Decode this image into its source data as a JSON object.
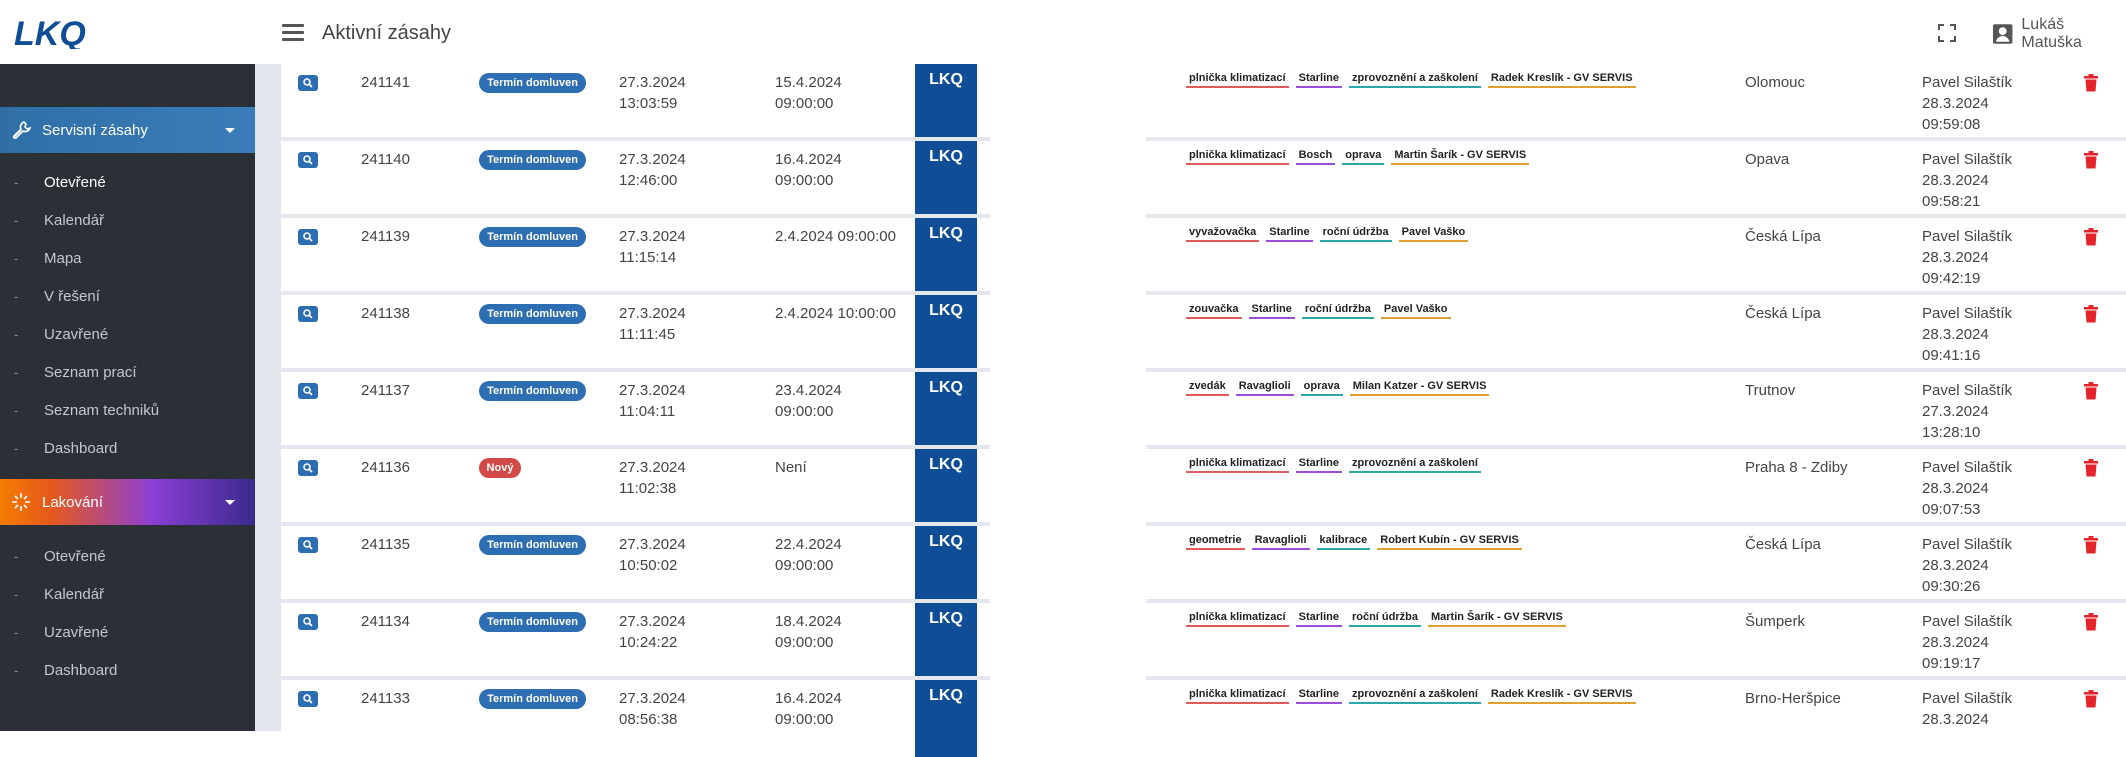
{
  "header": {
    "logo_text": "LKQ",
    "page_title": "Aktivní zásahy",
    "user_name": "Lukáš Matuška"
  },
  "sidebar": {
    "section1": {
      "label": "Servisní zásahy",
      "items": [
        "Otevřené",
        "Kalendář",
        "Mapa",
        "V řešení",
        "Uzavřené",
        "Seznam prací",
        "Seznam techniků",
        "Dashboard"
      ]
    },
    "section2": {
      "label": "Lakování",
      "items": [
        "Otevřené",
        "Kalendář",
        "Uzavřené",
        "Dashboard"
      ]
    }
  },
  "colors": {
    "accent_blue": "#2d6db1",
    "lkq_blue": "#0f4e96",
    "badge_red": "#d24a45",
    "delete_red": "#e3242b"
  },
  "rows": [
    {
      "id": "241141",
      "status": "Termín domluven",
      "status_color": "blue",
      "created_date": "27.3.2024",
      "created_time": "13:03:59",
      "term_date": "15.4.2024",
      "term_time": "09:00:00",
      "brand": "LKQ",
      "tags": [
        {
          "t": "plnička klimatizací",
          "c": "#e05a5a"
        },
        {
          "t": "Starline",
          "c": "#9b4fd6"
        },
        {
          "t": "zprovoznění a zaškolení",
          "c": "#2aa8a8"
        },
        {
          "t": "Radek Kreslík - GV SERVIS",
          "c": "#e0a030"
        }
      ],
      "city": "Olomouc",
      "modified_by": "Pavel Silaštík",
      "modified_date": "28.3.2024",
      "modified_time": "09:59:08"
    },
    {
      "id": "241140",
      "status": "Termín domluven",
      "status_color": "blue",
      "created_date": "27.3.2024",
      "created_time": "12:46:00",
      "term_date": "16.4.2024",
      "term_time": "09:00:00",
      "brand": "LKQ",
      "tags": [
        {
          "t": "plnička klimatizací",
          "c": "#e05a5a"
        },
        {
          "t": "Bosch",
          "c": "#9b4fd6"
        },
        {
          "t": "oprava",
          "c": "#2aa8a8"
        },
        {
          "t": "Martin Šarík - GV SERVIS",
          "c": "#e0a030"
        }
      ],
      "city": "Opava",
      "modified_by": "Pavel Silaštík",
      "modified_date": "28.3.2024",
      "modified_time": "09:58:21"
    },
    {
      "id": "241139",
      "status": "Termín domluven",
      "status_color": "blue",
      "created_date": "27.3.2024",
      "created_time": "11:15:14",
      "term_date": "2.4.2024 09:00:00",
      "term_time": "",
      "brand": "LKQ",
      "tags": [
        {
          "t": "vyvažovačka",
          "c": "#e05a5a"
        },
        {
          "t": "Starline",
          "c": "#9b4fd6"
        },
        {
          "t": "roční údržba",
          "c": "#2aa8a8"
        },
        {
          "t": "Pavel Vaško",
          "c": "#e0a030"
        }
      ],
      "city": "Česká Lípa",
      "modified_by": "Pavel Silaštík",
      "modified_date": "28.3.2024",
      "modified_time": "09:42:19"
    },
    {
      "id": "241138",
      "status": "Termín domluven",
      "status_color": "blue",
      "created_date": "27.3.2024",
      "created_time": "11:11:45",
      "term_date": "2.4.2024 10:00:00",
      "term_time": "",
      "brand": "LKQ",
      "tags": [
        {
          "t": "zouvačka",
          "c": "#e05a5a"
        },
        {
          "t": "Starline",
          "c": "#9b4fd6"
        },
        {
          "t": "roční údržba",
          "c": "#2aa8a8"
        },
        {
          "t": "Pavel Vaško",
          "c": "#e0a030"
        }
      ],
      "city": "Česká Lípa",
      "modified_by": "Pavel Silaštík",
      "modified_date": "28.3.2024",
      "modified_time": "09:41:16"
    },
    {
      "id": "241137",
      "status": "Termín domluven",
      "status_color": "blue",
      "created_date": "27.3.2024",
      "created_time": "11:04:11",
      "term_date": "23.4.2024",
      "term_time": "09:00:00",
      "brand": "LKQ",
      "tags": [
        {
          "t": "zvedák",
          "c": "#e05a5a"
        },
        {
          "t": "Ravaglioli",
          "c": "#9b4fd6"
        },
        {
          "t": "oprava",
          "c": "#2aa8a8"
        },
        {
          "t": "Milan Katzer - GV SERVIS",
          "c": "#e0a030"
        }
      ],
      "city": "Trutnov",
      "modified_by": "Pavel Silaštík",
      "modified_date": "27.3.2024",
      "modified_time": "13:28:10"
    },
    {
      "id": "241136",
      "status": "Nový",
      "status_color": "red",
      "created_date": "27.3.2024",
      "created_time": "11:02:38",
      "term_date": "Není",
      "term_time": "",
      "brand": "LKQ",
      "tags": [
        {
          "t": "plnička klimatizací",
          "c": "#e05a5a"
        },
        {
          "t": "Starline",
          "c": "#9b4fd6"
        },
        {
          "t": "zprovoznění a zaškolení",
          "c": "#2aa8a8"
        }
      ],
      "city": "Praha 8 - Zdiby",
      "modified_by": "Pavel Silaštík",
      "modified_date": "28.3.2024",
      "modified_time": "09:07:53"
    },
    {
      "id": "241135",
      "status": "Termín domluven",
      "status_color": "blue",
      "created_date": "27.3.2024",
      "created_time": "10:50:02",
      "term_date": "22.4.2024",
      "term_time": "09:00:00",
      "brand": "LKQ",
      "tags": [
        {
          "t": "geometrie",
          "c": "#e05a5a"
        },
        {
          "t": "Ravaglioli",
          "c": "#9b4fd6"
        },
        {
          "t": "kalibrace",
          "c": "#2aa8a8"
        },
        {
          "t": "Robert Kubín - GV SERVIS",
          "c": "#e0a030"
        }
      ],
      "city": "Česká Lípa",
      "modified_by": "Pavel Silaštík",
      "modified_date": "28.3.2024",
      "modified_time": "09:30:26"
    },
    {
      "id": "241134",
      "status": "Termín domluven",
      "status_color": "blue",
      "created_date": "27.3.2024",
      "created_time": "10:24:22",
      "term_date": "18.4.2024",
      "term_time": "09:00:00",
      "brand": "LKQ",
      "tags": [
        {
          "t": "plnička klimatizací",
          "c": "#e05a5a"
        },
        {
          "t": "Starline",
          "c": "#9b4fd6"
        },
        {
          "t": "roční údržba",
          "c": "#2aa8a8"
        },
        {
          "t": "Martin Šarík - GV SERVIS",
          "c": "#e0a030"
        }
      ],
      "city": "Šumperk",
      "modified_by": "Pavel Silaštík",
      "modified_date": "28.3.2024",
      "modified_time": "09:19:17"
    },
    {
      "id": "241133",
      "status": "Termín domluven",
      "status_color": "blue",
      "created_date": "27.3.2024",
      "created_time": "08:56:38",
      "term_date": "16.4.2024",
      "term_time": "09:00:00",
      "brand": "LKQ",
      "tags": [
        {
          "t": "plnička klimatizací",
          "c": "#e05a5a"
        },
        {
          "t": "Starline",
          "c": "#9b4fd6"
        },
        {
          "t": "zprovoznění a zaškolení",
          "c": "#2aa8a8"
        },
        {
          "t": "Radek Kreslík - GV SERVIS",
          "c": "#e0a030"
        }
      ],
      "city": "Brno-Heršpice",
      "modified_by": "Pavel Silaštík",
      "modified_date": "28.3.2024",
      "modified_time": ""
    }
  ]
}
